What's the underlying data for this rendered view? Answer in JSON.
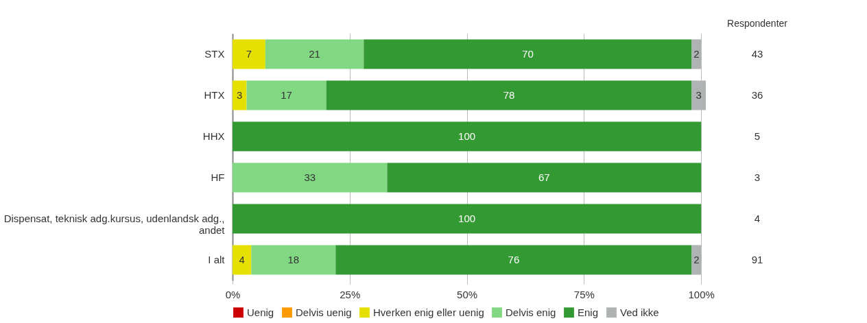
{
  "chart_data": {
    "type": "bar",
    "orientation": "horizontal",
    "stacked": true,
    "categories": [
      "STX",
      "HTX",
      "HHX",
      "HF",
      "Dispensat, teknisk adg.kursus, udenlandsk adg., andet",
      "I alt"
    ],
    "series": [
      {
        "name": "Uenig",
        "color": "#cc0000",
        "values": [
          0,
          0,
          0,
          0,
          0,
          0
        ],
        "value_labels": [
          null,
          null,
          null,
          null,
          null,
          null
        ]
      },
      {
        "name": "Delvis uenig",
        "color": "#ff9900",
        "values": [
          0,
          0,
          0,
          0,
          0,
          0
        ],
        "value_labels": [
          null,
          null,
          null,
          null,
          null,
          null
        ]
      },
      {
        "name": "Hverken enig eller uenig",
        "color": "#e6e000",
        "values": [
          7,
          3,
          0,
          0,
          0,
          4
        ],
        "value_labels": [
          "7",
          "3",
          null,
          null,
          null,
          "4"
        ]
      },
      {
        "name": "Delvis enig",
        "color": "#82d882",
        "values": [
          21,
          17,
          0,
          33,
          0,
          18
        ],
        "value_labels": [
          "21",
          "17",
          null,
          "33",
          null,
          "18"
        ]
      },
      {
        "name": "Enig",
        "color": "#339933",
        "values": [
          70,
          78,
          100,
          67,
          100,
          76
        ],
        "value_labels": [
          "70",
          "78",
          "100",
          "67",
          "100",
          "76"
        ]
      },
      {
        "name": "Ved ikke",
        "color": "#b0b3b3",
        "values": [
          2,
          3,
          0,
          0,
          0,
          2
        ],
        "value_labels": [
          "2",
          "3",
          null,
          null,
          null,
          "2"
        ]
      }
    ],
    "xlim": [
      0,
      101
    ],
    "xticks": [
      {
        "value": 0,
        "label": "0%"
      },
      {
        "value": 25,
        "label": "25%"
      },
      {
        "value": 50,
        "label": "50%"
      },
      {
        "value": 75,
        "label": "75%"
      },
      {
        "value": 100,
        "label": "100%"
      }
    ],
    "grid": "x",
    "legend": "bottom",
    "annotations": [
      "Respondenter",
      "43",
      "36",
      "5",
      "3",
      "4",
      "91"
    ]
  }
}
